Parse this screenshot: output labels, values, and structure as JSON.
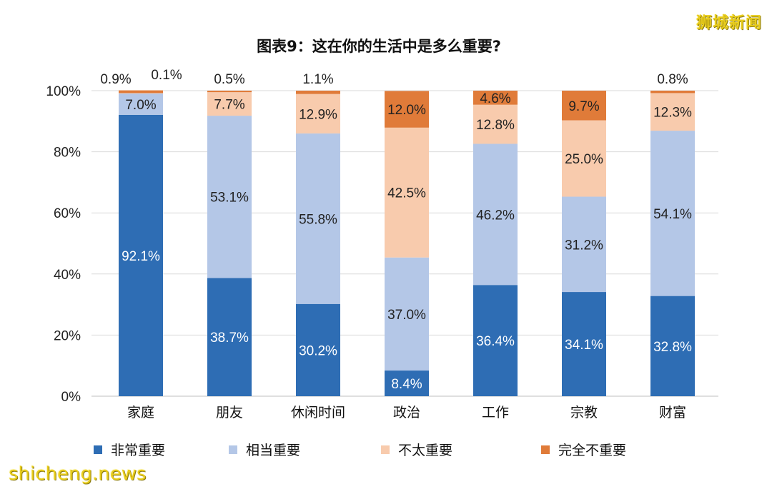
{
  "watermark_top": "狮城新闻",
  "watermark_bottom": "shicheng.news",
  "chart_data": {
    "type": "bar",
    "stacked": true,
    "title": "图表9：这在你的生活中是多么重要?",
    "categories": [
      "家庭",
      "朋友",
      "休闲时间",
      "政治",
      "工作",
      "宗教",
      "财富"
    ],
    "ylim": [
      0,
      100
    ],
    "yticks": [
      "0%",
      "20%",
      "40%",
      "60%",
      "80%",
      "100%"
    ],
    "grid": true,
    "legend_position": "bottom",
    "series": [
      {
        "name": "非常重要",
        "color": "#2e6db4",
        "values": [
          92.1,
          38.7,
          30.2,
          8.4,
          36.4,
          34.1,
          32.8
        ],
        "labels": [
          "92.1%",
          "38.7%",
          "30.2%",
          "8.4%",
          "36.4%",
          "34.1%",
          "32.8%"
        ]
      },
      {
        "name": "相当重要",
        "color": "#b4c7e7",
        "values": [
          7.0,
          53.1,
          55.8,
          37.0,
          46.2,
          31.2,
          54.1
        ],
        "labels": [
          "7.0%",
          "53.1%",
          "55.8%",
          "37.0%",
          "46.2%",
          "31.2%",
          "54.1%"
        ]
      },
      {
        "name": "不太重要",
        "color": "#f8cbad",
        "values": [
          0.1,
          7.7,
          12.9,
          42.5,
          12.8,
          25.0,
          12.3
        ],
        "labels": [
          "0.1%",
          "7.7%",
          "12.9%",
          "42.5%",
          "12.8%",
          "25.0%",
          "12.3%"
        ]
      },
      {
        "name": "完全不重要",
        "color": "#e07b39",
        "values": [
          0.9,
          0.5,
          1.1,
          12.0,
          4.6,
          9.7,
          0.8
        ],
        "labels": [
          "0.9%",
          "0.5%",
          "1.1%",
          "12.0%",
          "4.6%",
          "9.7%",
          "0.8%"
        ]
      }
    ]
  }
}
